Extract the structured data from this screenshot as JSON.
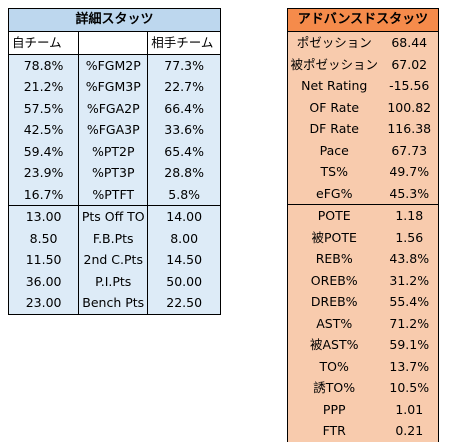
{
  "left_table": {
    "title": "詳細スタッツ",
    "header": {
      "self": "自チーム",
      "middle": "",
      "opponent": "相手チーム"
    },
    "rows_percent": [
      {
        "self": "78.8%",
        "stat": "%FGM2P",
        "opp": "77.3%"
      },
      {
        "self": "21.2%",
        "stat": "%FGM3P",
        "opp": "22.7%"
      },
      {
        "self": "57.5%",
        "stat": "%FGA2P",
        "opp": "66.4%"
      },
      {
        "self": "42.5%",
        "stat": "%FGA3P",
        "opp": "33.6%"
      },
      {
        "self": "59.4%",
        "stat": "%PT2P",
        "opp": "65.4%"
      },
      {
        "self": "23.9%",
        "stat": "%PT3P",
        "opp": "28.8%"
      },
      {
        "self": "16.7%",
        "stat": "%PTFT",
        "opp": "5.8%"
      }
    ],
    "rows_points": [
      {
        "self": "13.00",
        "stat": "Pts Off TO",
        "opp": "14.00"
      },
      {
        "self": "8.50",
        "stat": "F.B.Pts",
        "opp": "8.00"
      },
      {
        "self": "11.50",
        "stat": "2nd C.Pts",
        "opp": "14.50"
      },
      {
        "self": "36.00",
        "stat": "P.I.Pts",
        "opp": "50.00"
      },
      {
        "self": "23.00",
        "stat": "Bench Pts",
        "opp": "22.50"
      }
    ]
  },
  "right_table": {
    "title": "アドバンスドスタッツ",
    "group1": [
      {
        "label": "ポゼッション",
        "value": "68.44"
      },
      {
        "label": "被ポゼッション",
        "value": "67.02"
      },
      {
        "label": "Net Rating",
        "value": "-15.56"
      },
      {
        "label": "OF Rate",
        "value": "100.82"
      },
      {
        "label": "DF Rate",
        "value": "116.38"
      },
      {
        "label": "Pace",
        "value": "67.73"
      },
      {
        "label": "TS%",
        "value": "49.7%"
      },
      {
        "label": "eFG%",
        "value": "45.3%"
      }
    ],
    "group2": [
      {
        "label": "POTE",
        "value": "1.18"
      },
      {
        "label": "被POTE",
        "value": "1.56"
      },
      {
        "label": "REB%",
        "value": "43.8%"
      },
      {
        "label": "OREB%",
        "value": "31.2%"
      },
      {
        "label": "DREB%",
        "value": "55.4%"
      },
      {
        "label": "AST%",
        "value": "71.2%"
      },
      {
        "label": "被AST%",
        "value": "59.1%"
      },
      {
        "label": "TO%",
        "value": "13.7%"
      },
      {
        "label": "誘TO%",
        "value": "10.5%"
      },
      {
        "label": "PPP",
        "value": "1.01"
      },
      {
        "label": "FTR",
        "value": "0.21"
      }
    ]
  },
  "colors": {
    "left_title_bg": "#bdd7ee",
    "left_body_bg": "#ddebf7",
    "right_title_bg": "#f58b4b",
    "right_body_bg": "#f8cbad"
  }
}
